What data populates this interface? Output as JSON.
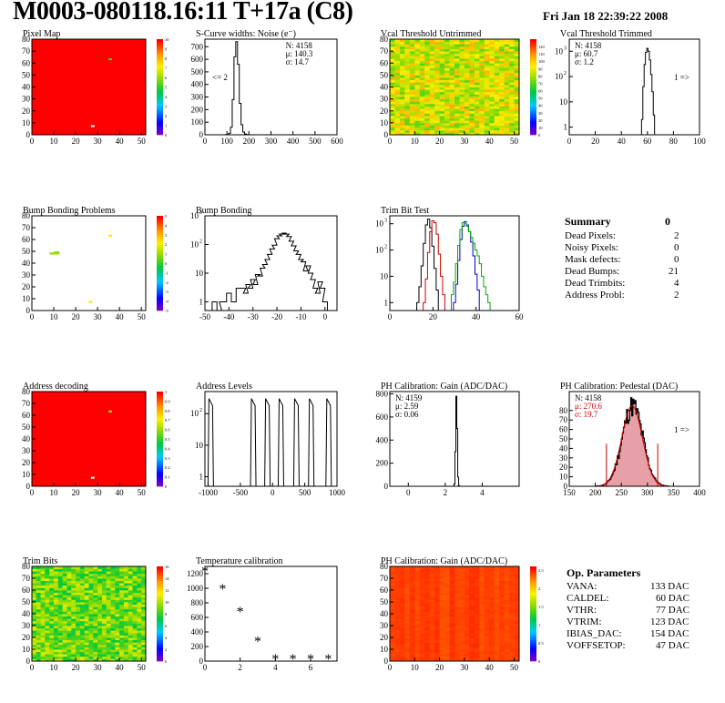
{
  "header": {
    "title": "M0003-080118.16:11 T+17a (C8)",
    "date": "Fri Jan 18 22:39:22 2008"
  },
  "summary": {
    "title": "Summary",
    "value": "0",
    "rows": [
      {
        "label": "Dead Pixels:",
        "value": "2"
      },
      {
        "label": "Noisy Pixels:",
        "value": "0"
      },
      {
        "label": "Mask defects:",
        "value": "0"
      },
      {
        "label": "Dead Bumps:",
        "value": "21"
      },
      {
        "label": "Dead Trimbits:",
        "value": "4"
      },
      {
        "label": "Address Probl:",
        "value": "2"
      }
    ]
  },
  "op_params": {
    "title": "Op. Parameters",
    "rows": [
      {
        "label": "VANA:",
        "value": "133 DAC"
      },
      {
        "label": "CALDEL:",
        "value": "60 DAC"
      },
      {
        "label": "VTHR:",
        "value": "77 DAC"
      },
      {
        "label": "VTRIM:",
        "value": "123 DAC"
      },
      {
        "label": "IBIAS_DAC:",
        "value": "154 DAC"
      },
      {
        "label": "VOFFSETOP:",
        "value": "47 DAC"
      }
    ]
  },
  "chart_data": [
    {
      "id": "pixel-map",
      "type": "heatmap",
      "title": "Pixel Map",
      "xlim": [
        0,
        52
      ],
      "ylim": [
        0,
        80
      ],
      "xticks": [
        0,
        10,
        20,
        30,
        40,
        50
      ],
      "yticks": [
        0,
        10,
        20,
        30,
        40,
        50,
        60,
        70,
        80
      ],
      "zlim": [
        0,
        10
      ],
      "zticks": [
        0,
        1,
        2,
        3,
        4,
        5,
        6,
        7,
        8,
        9,
        10
      ],
      "palette": "rainbow",
      "fill_value": 10,
      "special_cells": [
        {
          "x": 35,
          "y": 63,
          "value": 5
        },
        {
          "x": 27,
          "y": 7,
          "value": 0
        }
      ]
    },
    {
      "id": "scurve-noise",
      "type": "histogram",
      "title": "S-Curve widths: Noise (e⁻)",
      "xlim": [
        0,
        600
      ],
      "xticks": [
        0,
        100,
        200,
        300,
        400,
        500,
        600
      ],
      "ylim": [
        0,
        760
      ],
      "yticks": [
        0,
        100,
        200,
        300,
        400,
        500,
        600,
        700
      ],
      "log": false,
      "bins": [
        [
          96,
          1
        ],
        [
          104,
          3
        ],
        [
          112,
          12
        ],
        [
          120,
          60
        ],
        [
          128,
          280
        ],
        [
          136,
          620
        ],
        [
          144,
          740
        ],
        [
          152,
          560
        ],
        [
          160,
          250
        ],
        [
          168,
          80
        ],
        [
          176,
          22
        ],
        [
          184,
          6
        ],
        [
          192,
          2
        ]
      ],
      "stats": [
        "N: 4158",
        "μ: 140.3",
        "σ: 14.7"
      ],
      "annotation": "<= 2"
    },
    {
      "id": "vcal-untrimmed",
      "type": "heatmap",
      "title": "Vcal Threshold Untrimmed",
      "xlim": [
        0,
        52
      ],
      "ylim": [
        0,
        80
      ],
      "xticks": [
        0,
        10,
        20,
        30,
        40,
        50
      ],
      "yticks": [
        0,
        10,
        20,
        30,
        40,
        50,
        60,
        70,
        80
      ],
      "zlim": [
        0,
        130
      ],
      "zticks": [
        0,
        10,
        20,
        30,
        40,
        50,
        60,
        70,
        80,
        90,
        100,
        110,
        120
      ],
      "palette": "rainbow",
      "pattern": "noise",
      "center": 88,
      "spread": 18
    },
    {
      "id": "vcal-trimmed",
      "type": "histogram",
      "title": "Vcal Threshold Trimmed",
      "xlim": [
        0,
        100
      ],
      "xticks": [
        0,
        20,
        40,
        60,
        80,
        100
      ],
      "ylim": [
        0.5,
        3000
      ],
      "yticks": [
        1,
        10,
        100,
        1000
      ],
      "log": true,
      "bins": [
        [
          56,
          2
        ],
        [
          57,
          40
        ],
        [
          58,
          300
        ],
        [
          59,
          900
        ],
        [
          60,
          1300
        ],
        [
          61,
          1000
        ],
        [
          62,
          450
        ],
        [
          63,
          120
        ],
        [
          64,
          25
        ],
        [
          65,
          3
        ]
      ],
      "stats": [
        "N: 4158",
        "μ: 60.7",
        "σ: 1.2"
      ],
      "annotation": "1 =>"
    },
    {
      "id": "bump-bonding-problems",
      "type": "heatmap",
      "title": "Bump Bonding Problems",
      "xlim": [
        0,
        52
      ],
      "ylim": [
        0,
        80
      ],
      "xticks": [
        0,
        10,
        20,
        30,
        40,
        50
      ],
      "yticks": [
        0,
        10,
        20,
        30,
        40,
        50,
        60,
        70,
        80
      ],
      "zlim": [
        -5,
        5
      ],
      "zticks": [
        -5,
        -4,
        -3,
        -2,
        -1,
        0,
        1,
        2,
        3,
        4,
        5
      ],
      "palette": "rainbow",
      "fill_value": null,
      "special_cells": [
        {
          "x": 8,
          "y": 48,
          "value": 1
        },
        {
          "x": 9,
          "y": 48,
          "value": 1
        },
        {
          "x": 10,
          "y": 48,
          "value": 1
        },
        {
          "x": 10,
          "y": 49,
          "value": 1
        },
        {
          "x": 11,
          "y": 48,
          "value": 1
        },
        {
          "x": 11,
          "y": 49,
          "value": 1
        },
        {
          "x": 35,
          "y": 63,
          "value": 2
        },
        {
          "x": 26,
          "y": 7,
          "value": 2
        }
      ]
    },
    {
      "id": "bump-bonding",
      "type": "histogram",
      "title": "Bump Bonding",
      "xlim": [
        -50,
        5
      ],
      "xticks": [
        -50,
        -40,
        -30,
        -20,
        -10,
        0
      ],
      "ylim": [
        0.5,
        1000
      ],
      "yticks": [
        1,
        10,
        100,
        1000
      ],
      "log": true,
      "bins": [
        [
          -46,
          1
        ],
        [
          -44,
          0
        ],
        [
          -43,
          1
        ],
        [
          -42,
          1
        ],
        [
          -40,
          2
        ],
        [
          -38,
          1
        ],
        [
          -36,
          3
        ],
        [
          -34,
          3
        ],
        [
          -33,
          2
        ],
        [
          -32,
          4
        ],
        [
          -31,
          3
        ],
        [
          -30,
          6
        ],
        [
          -29,
          4
        ],
        [
          -28,
          9
        ],
        [
          -27,
          8
        ],
        [
          -26,
          15
        ],
        [
          -25,
          20
        ],
        [
          -24,
          30
        ],
        [
          -23,
          45
        ],
        [
          -22,
          70
        ],
        [
          -21,
          95
        ],
        [
          -20,
          160
        ],
        [
          -19,
          200
        ],
        [
          -18,
          230
        ],
        [
          -17,
          250
        ],
        [
          -16,
          230
        ],
        [
          -15,
          190
        ],
        [
          -14,
          130
        ],
        [
          -13,
          90
        ],
        [
          -12,
          60
        ],
        [
          -11,
          45
        ],
        [
          -10,
          30
        ],
        [
          -9,
          25
        ],
        [
          -8,
          12
        ],
        [
          -7,
          18
        ],
        [
          -6,
          10
        ],
        [
          -5,
          6
        ],
        [
          -4,
          3
        ],
        [
          -3,
          2
        ],
        [
          -2,
          5
        ],
        [
          -1,
          3
        ],
        [
          0,
          1
        ]
      ]
    },
    {
      "id": "trim-bit-test",
      "type": "histogram",
      "title": "Trim Bit Test",
      "xlim": [
        0,
        60
      ],
      "xticks": [
        0,
        20,
        40,
        60
      ],
      "ylim": [
        0.5,
        2000
      ],
      "yticks": [
        1,
        10,
        100,
        1000
      ],
      "log": true,
      "series": [
        {
          "color": "#000000",
          "bins": [
            [
              13,
              1
            ],
            [
              14,
              4
            ],
            [
              15,
              25
            ],
            [
              16,
              180
            ],
            [
              17,
              900
            ],
            [
              18,
              1500
            ],
            [
              19,
              700
            ],
            [
              20,
              140
            ],
            [
              21,
              20
            ],
            [
              22,
              3
            ]
          ]
        },
        {
          "color": "#cc0000",
          "bins": [
            [
              16,
              1
            ],
            [
              17,
              8
            ],
            [
              18,
              80
            ],
            [
              19,
              500
            ],
            [
              20,
              1300
            ],
            [
              21,
              1100
            ],
            [
              22,
              400
            ],
            [
              23,
              70
            ],
            [
              24,
              10
            ],
            [
              25,
              2
            ]
          ]
        },
        {
          "color": "#0000cc",
          "bins": [
            [
              30,
              1
            ],
            [
              31,
              5
            ],
            [
              32,
              40
            ],
            [
              33,
              250
            ],
            [
              34,
              800
            ],
            [
              35,
              1200
            ],
            [
              36,
              900
            ],
            [
              37,
              500
            ],
            [
              38,
              200
            ],
            [
              39,
              60
            ],
            [
              40,
              12
            ],
            [
              41,
              3
            ]
          ]
        },
        {
          "color": "#00aa00",
          "bins": [
            [
              29,
              2
            ],
            [
              30,
              6
            ],
            [
              31,
              30
            ],
            [
              32,
              150
            ],
            [
              33,
              600
            ],
            [
              34,
              1100
            ],
            [
              35,
              1050
            ],
            [
              36,
              800
            ],
            [
              37,
              500
            ],
            [
              38,
              300
            ],
            [
              39,
              180
            ],
            [
              40,
              100
            ],
            [
              41,
              60
            ],
            [
              42,
              30
            ],
            [
              43,
              10
            ],
            [
              44,
              4
            ],
            [
              45,
              2
            ],
            [
              46,
              1
            ]
          ]
        }
      ]
    },
    {
      "id": "address-decoding",
      "type": "heatmap",
      "title": "Address decoding",
      "xlim": [
        0,
        52
      ],
      "ylim": [
        0,
        80
      ],
      "xticks": [
        0,
        10,
        20,
        30,
        40,
        50
      ],
      "yticks": [
        0,
        10,
        20,
        30,
        40,
        50,
        60,
        70,
        80
      ],
      "zlim": [
        0,
        1
      ],
      "zticks": [
        0,
        0.1,
        0.2,
        0.3,
        0.4,
        0.5,
        0.6,
        0.7,
        0.8,
        0.9,
        1
      ],
      "palette": "rainbow",
      "fill_value": 1,
      "special_cells": [
        {
          "x": 35,
          "y": 63,
          "value": 0.6
        },
        {
          "x": 27,
          "y": 7,
          "value": 0
        }
      ]
    },
    {
      "id": "address-levels",
      "type": "histogram",
      "title": "Address Levels",
      "xlim": [
        -1050,
        1000
      ],
      "xticks": [
        -1000,
        -500,
        0,
        500,
        1000
      ],
      "ylim": [
        0.5,
        500
      ],
      "yticks": [
        1,
        10,
        100
      ],
      "log": true,
      "spikes": [
        -960,
        -300,
        -80,
        130,
        370,
        600,
        870
      ],
      "spike_height": 300
    },
    {
      "id": "ph-gain",
      "type": "histogram",
      "title": "PH Calibration: Gain (ADC/DAC)",
      "xlim": [
        -1,
        6
      ],
      "xticks": [
        0,
        2,
        4
      ],
      "ylim": [
        0,
        820
      ],
      "yticks": [
        0,
        200,
        400,
        600,
        800
      ],
      "log": false,
      "bins": [
        [
          2.45,
          1
        ],
        [
          2.5,
          20
        ],
        [
          2.55,
          300
        ],
        [
          2.6,
          780
        ],
        [
          2.65,
          500
        ],
        [
          2.7,
          80
        ],
        [
          2.75,
          5
        ]
      ],
      "stats": [
        "N: 4159",
        "μ: 2.59",
        "σ: 0.06"
      ]
    },
    {
      "id": "ph-pedestal",
      "type": "histogram",
      "title": "PH Calibration: Pedestal (DAC)",
      "xlim": [
        150,
        400
      ],
      "xticks": [
        150,
        200,
        250,
        300,
        350,
        400
      ],
      "ylim": [
        0,
        100
      ],
      "yticks": [
        0,
        10,
        20,
        30,
        40,
        50,
        60,
        70,
        80
      ],
      "log": false,
      "gauss": {
        "mu": 270.6,
        "sigma": 19.7,
        "amp": 85,
        "from": 200,
        "to": 340
      },
      "stats": [
        "N: 4158",
        "μ: 270.6",
        "σ: 19.7"
      ],
      "annotation": "1 =>"
    },
    {
      "id": "trim-bits",
      "type": "heatmap",
      "title": "Trim Bits",
      "xlim": [
        0,
        52
      ],
      "ylim": [
        0,
        80
      ],
      "xticks": [
        0,
        10,
        20,
        30,
        40,
        50
      ],
      "yticks": [
        0,
        10,
        20,
        30,
        40,
        50,
        60,
        70,
        80
      ],
      "zlim": [
        0,
        16
      ],
      "zticks": [
        0,
        2,
        4,
        6,
        8,
        10,
        12,
        14,
        16
      ],
      "palette": "rainbow",
      "pattern": "noise",
      "center": 9,
      "spread": 2
    },
    {
      "id": "temperature-calibration",
      "type": "scatter",
      "title": "Temperature calibration",
      "xlim": [
        0,
        7.5
      ],
      "xticks": [
        0,
        2,
        4,
        6
      ],
      "ylim": [
        0,
        1300
      ],
      "yticks": [
        0,
        200,
        400,
        600,
        800,
        1000,
        1200
      ],
      "points": [
        [
          0,
          1230
        ],
        [
          1,
          990
        ],
        [
          2,
          675
        ],
        [
          3,
          270
        ],
        [
          4,
          25
        ],
        [
          5,
          25
        ],
        [
          6,
          25
        ],
        [
          7,
          25
        ]
      ]
    },
    {
      "id": "ph-gain-map",
      "type": "heatmap",
      "title": "PH Calibration: Gain (ADC/DAC)",
      "xlim": [
        0,
        52
      ],
      "ylim": [
        0,
        80
      ],
      "xticks": [
        0,
        10,
        20,
        30,
        40,
        50
      ],
      "yticks": [
        0,
        10,
        20,
        30,
        40,
        50,
        60,
        70,
        80
      ],
      "zlim": [
        0,
        2.6
      ],
      "zticks": [
        0,
        0.5,
        1,
        1.5,
        2,
        2.5
      ],
      "palette": "rainbow",
      "pattern": "columns",
      "center": 2.5,
      "spread": 0.12
    }
  ]
}
